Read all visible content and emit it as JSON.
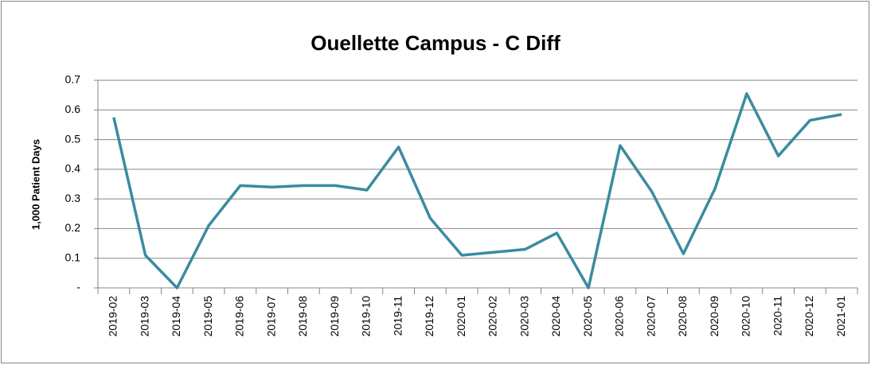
{
  "chart_data": {
    "type": "line",
    "title": "Ouellette Campus - C Diff",
    "y_label": "1,000 Patient Days",
    "categories": [
      "2019-02",
      "2019-03",
      "2019-04",
      "2019-05",
      "2019-06",
      "2019-07",
      "2019-08",
      "2019-09",
      "2019-10",
      "2019-11",
      "2019-12",
      "2020-01",
      "2020-02",
      "2020-03",
      "2020-04",
      "2020-05",
      "2020-06",
      "2020-07",
      "2020-08",
      "2020-09",
      "2020-10",
      "2020-11",
      "2020-12",
      "2021-01"
    ],
    "values": [
      0.575,
      0.11,
      0,
      0.21,
      0.345,
      0.34,
      0.345,
      0.345,
      0.33,
      0.475,
      0.235,
      0.11,
      0.12,
      0.13,
      0.185,
      0,
      0.48,
      0.325,
      0.115,
      0.335,
      0.655,
      0.445,
      0.565,
      0.585
    ],
    "color": "#3b8ba1",
    "ylim": [
      0,
      0.7
    ],
    "yticks": [
      {
        "value": 0,
        "label": "-"
      },
      0.1,
      0.2,
      0.3,
      0.4,
      0.5,
      0.6,
      0.7
    ],
    "grid": true
  }
}
